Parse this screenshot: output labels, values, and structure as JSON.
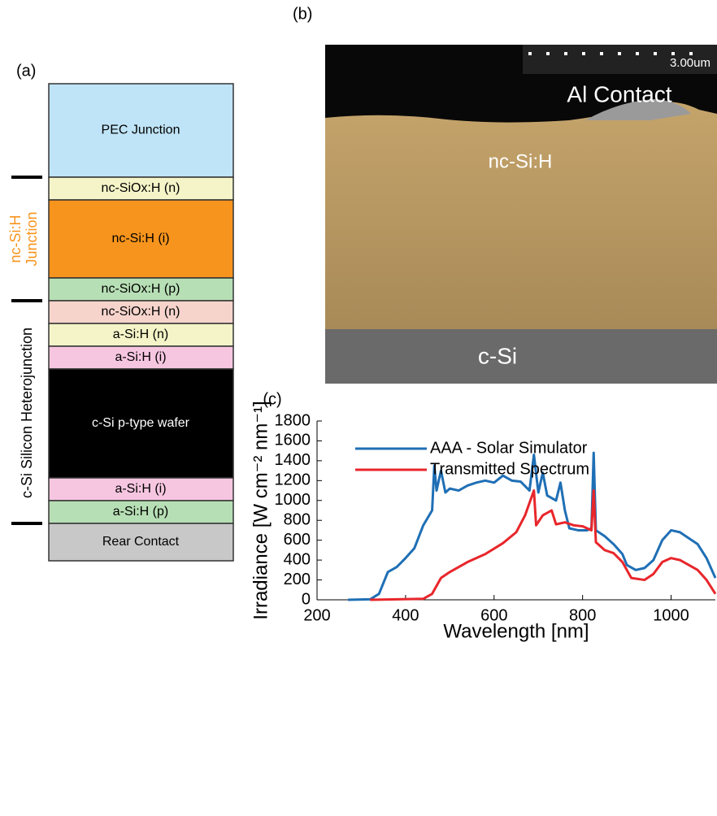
{
  "panel_a": {
    "label": "(a)",
    "side_labels": [
      "nc-Si:H",
      "Junction",
      "c-Si Silicon Heterojunction"
    ],
    "layers": [
      "PEC Junction",
      "nc-SiOx:H (n)",
      "nc-Si:H (i)",
      "nc-SiOx:H (p)",
      "nc-SiOx:H (n)",
      "a-Si:H (n)",
      "a-Si:H (i)",
      "c-Si p-type wafer",
      "a-Si:H (i)",
      "a-Si:H (p)",
      "Rear Contact"
    ]
  },
  "panel_b": {
    "label": "(b)",
    "scale_bar": "3.00um",
    "labels": [
      "Al Contact",
      "nc-Si:H",
      "c-Si"
    ]
  },
  "panel_c": {
    "label": "(c)"
  },
  "chart_data": {
    "type": "line",
    "x_label": "Wavelength [nm]",
    "y_label": "Irradiance [W cm⁻² nm⁻¹]",
    "xlim": [
      200,
      1100
    ],
    "xticks": [
      200,
      400,
      600,
      800,
      1000
    ],
    "ylim": [
      0,
      1800
    ],
    "yticks": [
      0,
      200,
      400,
      600,
      800,
      1000,
      1200,
      1400,
      1600,
      1800
    ],
    "legend": "upper left",
    "series": [
      {
        "name": "AAA - Solar Simulator",
        "color": "#1f6fb5",
        "x": [
          270,
          320,
          340,
          360,
          380,
          400,
          420,
          440,
          460,
          465,
          470,
          480,
          490,
          500,
          520,
          540,
          560,
          580,
          600,
          620,
          640,
          660,
          680,
          690,
          700,
          710,
          720,
          740,
          750,
          760,
          770,
          790,
          810,
          820,
          825,
          830,
          850,
          870,
          890,
          900,
          920,
          940,
          960,
          980,
          1000,
          1020,
          1040,
          1060,
          1080,
          1100
        ],
        "values": [
          0,
          5,
          60,
          280,
          330,
          420,
          520,
          750,
          900,
          1350,
          1100,
          1300,
          1080,
          1120,
          1100,
          1150,
          1180,
          1200,
          1180,
          1250,
          1200,
          1190,
          1100,
          1460,
          1080,
          1280,
          1050,
          1000,
          1180,
          900,
          720,
          700,
          700,
          720,
          1480,
          700,
          640,
          560,
          460,
          350,
          300,
          320,
          400,
          600,
          700,
          680,
          620,
          560,
          420,
          220
        ]
      },
      {
        "name": "Transmitted Spectrum",
        "color": "#e8262b",
        "x": [
          320,
          440,
          460,
          480,
          500,
          540,
          580,
          620,
          650,
          670,
          690,
          695,
          710,
          730,
          740,
          760,
          780,
          800,
          820,
          825,
          830,
          850,
          870,
          890,
          910,
          940,
          960,
          980,
          1000,
          1020,
          1040,
          1060,
          1080,
          1100
        ],
        "values": [
          0,
          10,
          60,
          220,
          280,
          380,
          460,
          570,
          680,
          850,
          1100,
          750,
          850,
          900,
          760,
          780,
          750,
          740,
          700,
          1100,
          580,
          500,
          470,
          380,
          220,
          200,
          260,
          380,
          420,
          400,
          350,
          300,
          200,
          60
        ]
      }
    ]
  }
}
